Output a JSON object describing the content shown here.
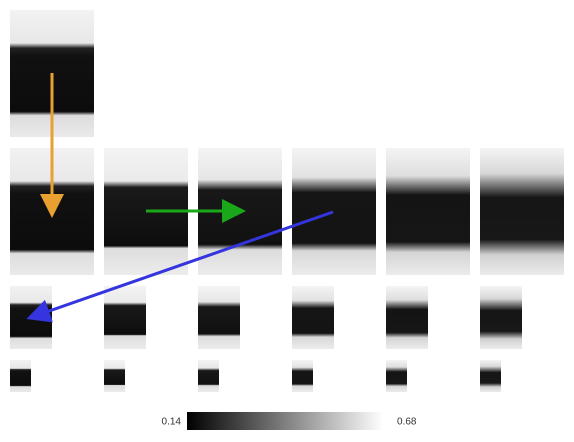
{
  "colorbar": {
    "min": 0.14,
    "max": 0.68
  }
}
